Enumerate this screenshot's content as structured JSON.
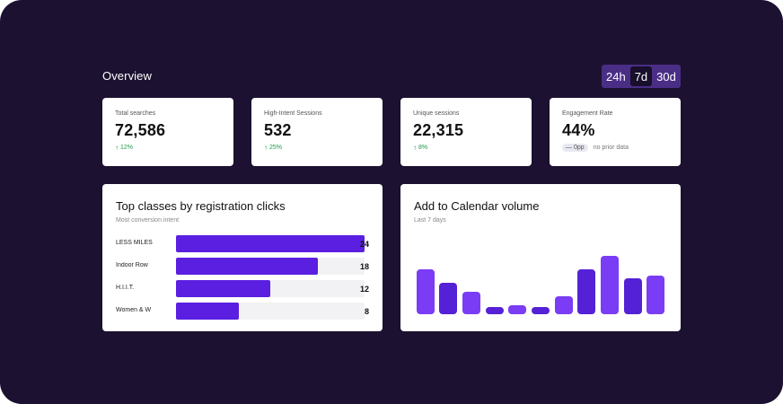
{
  "overview": {
    "title": "Overview"
  },
  "range": {
    "options": [
      "24h",
      "7d",
      "30d"
    ],
    "selected": "7d"
  },
  "kpis": [
    {
      "label": "Total searches",
      "value": "72,586",
      "delta": "12%",
      "trend": "up"
    },
    {
      "label": "High-Intent Sessions",
      "value": "532",
      "delta": "25%",
      "trend": "up"
    },
    {
      "label": "Unique sessions",
      "value": "22,315",
      "delta": "8%",
      "trend": "up"
    },
    {
      "label": "Engagement Rate",
      "value": "44%",
      "delta": "0pp",
      "trend": "flat",
      "note": "no prior data"
    }
  ],
  "top_classes": {
    "title": "Top classes by registration clicks",
    "subtitle": "Most conversion intent",
    "max": 24,
    "items": [
      {
        "label": "LESS MILES",
        "value": 24
      },
      {
        "label": "Indoor Row",
        "value": 18
      },
      {
        "label": "H.I.I.T.",
        "value": 12
      },
      {
        "label": "Women & W",
        "value": 8
      }
    ]
  },
  "calendar": {
    "title": "Add to Calendar volume",
    "subtitle": "Last 7 days",
    "chart_data": {
      "type": "bar",
      "values": [
        10,
        7,
        5,
        1,
        2,
        1.5,
        4,
        10,
        13,
        8,
        8.5
      ],
      "ylim": [
        0,
        13
      ],
      "colors": [
        "#7a3cf5",
        "#5521d6",
        "#7a3cf5",
        "#5521d6",
        "#7a3cf5",
        "#5521d6",
        "#7a3cf5",
        "#5521d6",
        "#7a3cf5",
        "#5521d6",
        "#7a3cf5"
      ]
    }
  },
  "colors": {
    "background": "#1c1130",
    "range_bg": "#4a2e86",
    "bar_primary": "#5a1fe0",
    "positive": "#1f9a4a"
  },
  "icons": {
    "up": "arrow-up-icon",
    "flat": "dash-icon"
  }
}
